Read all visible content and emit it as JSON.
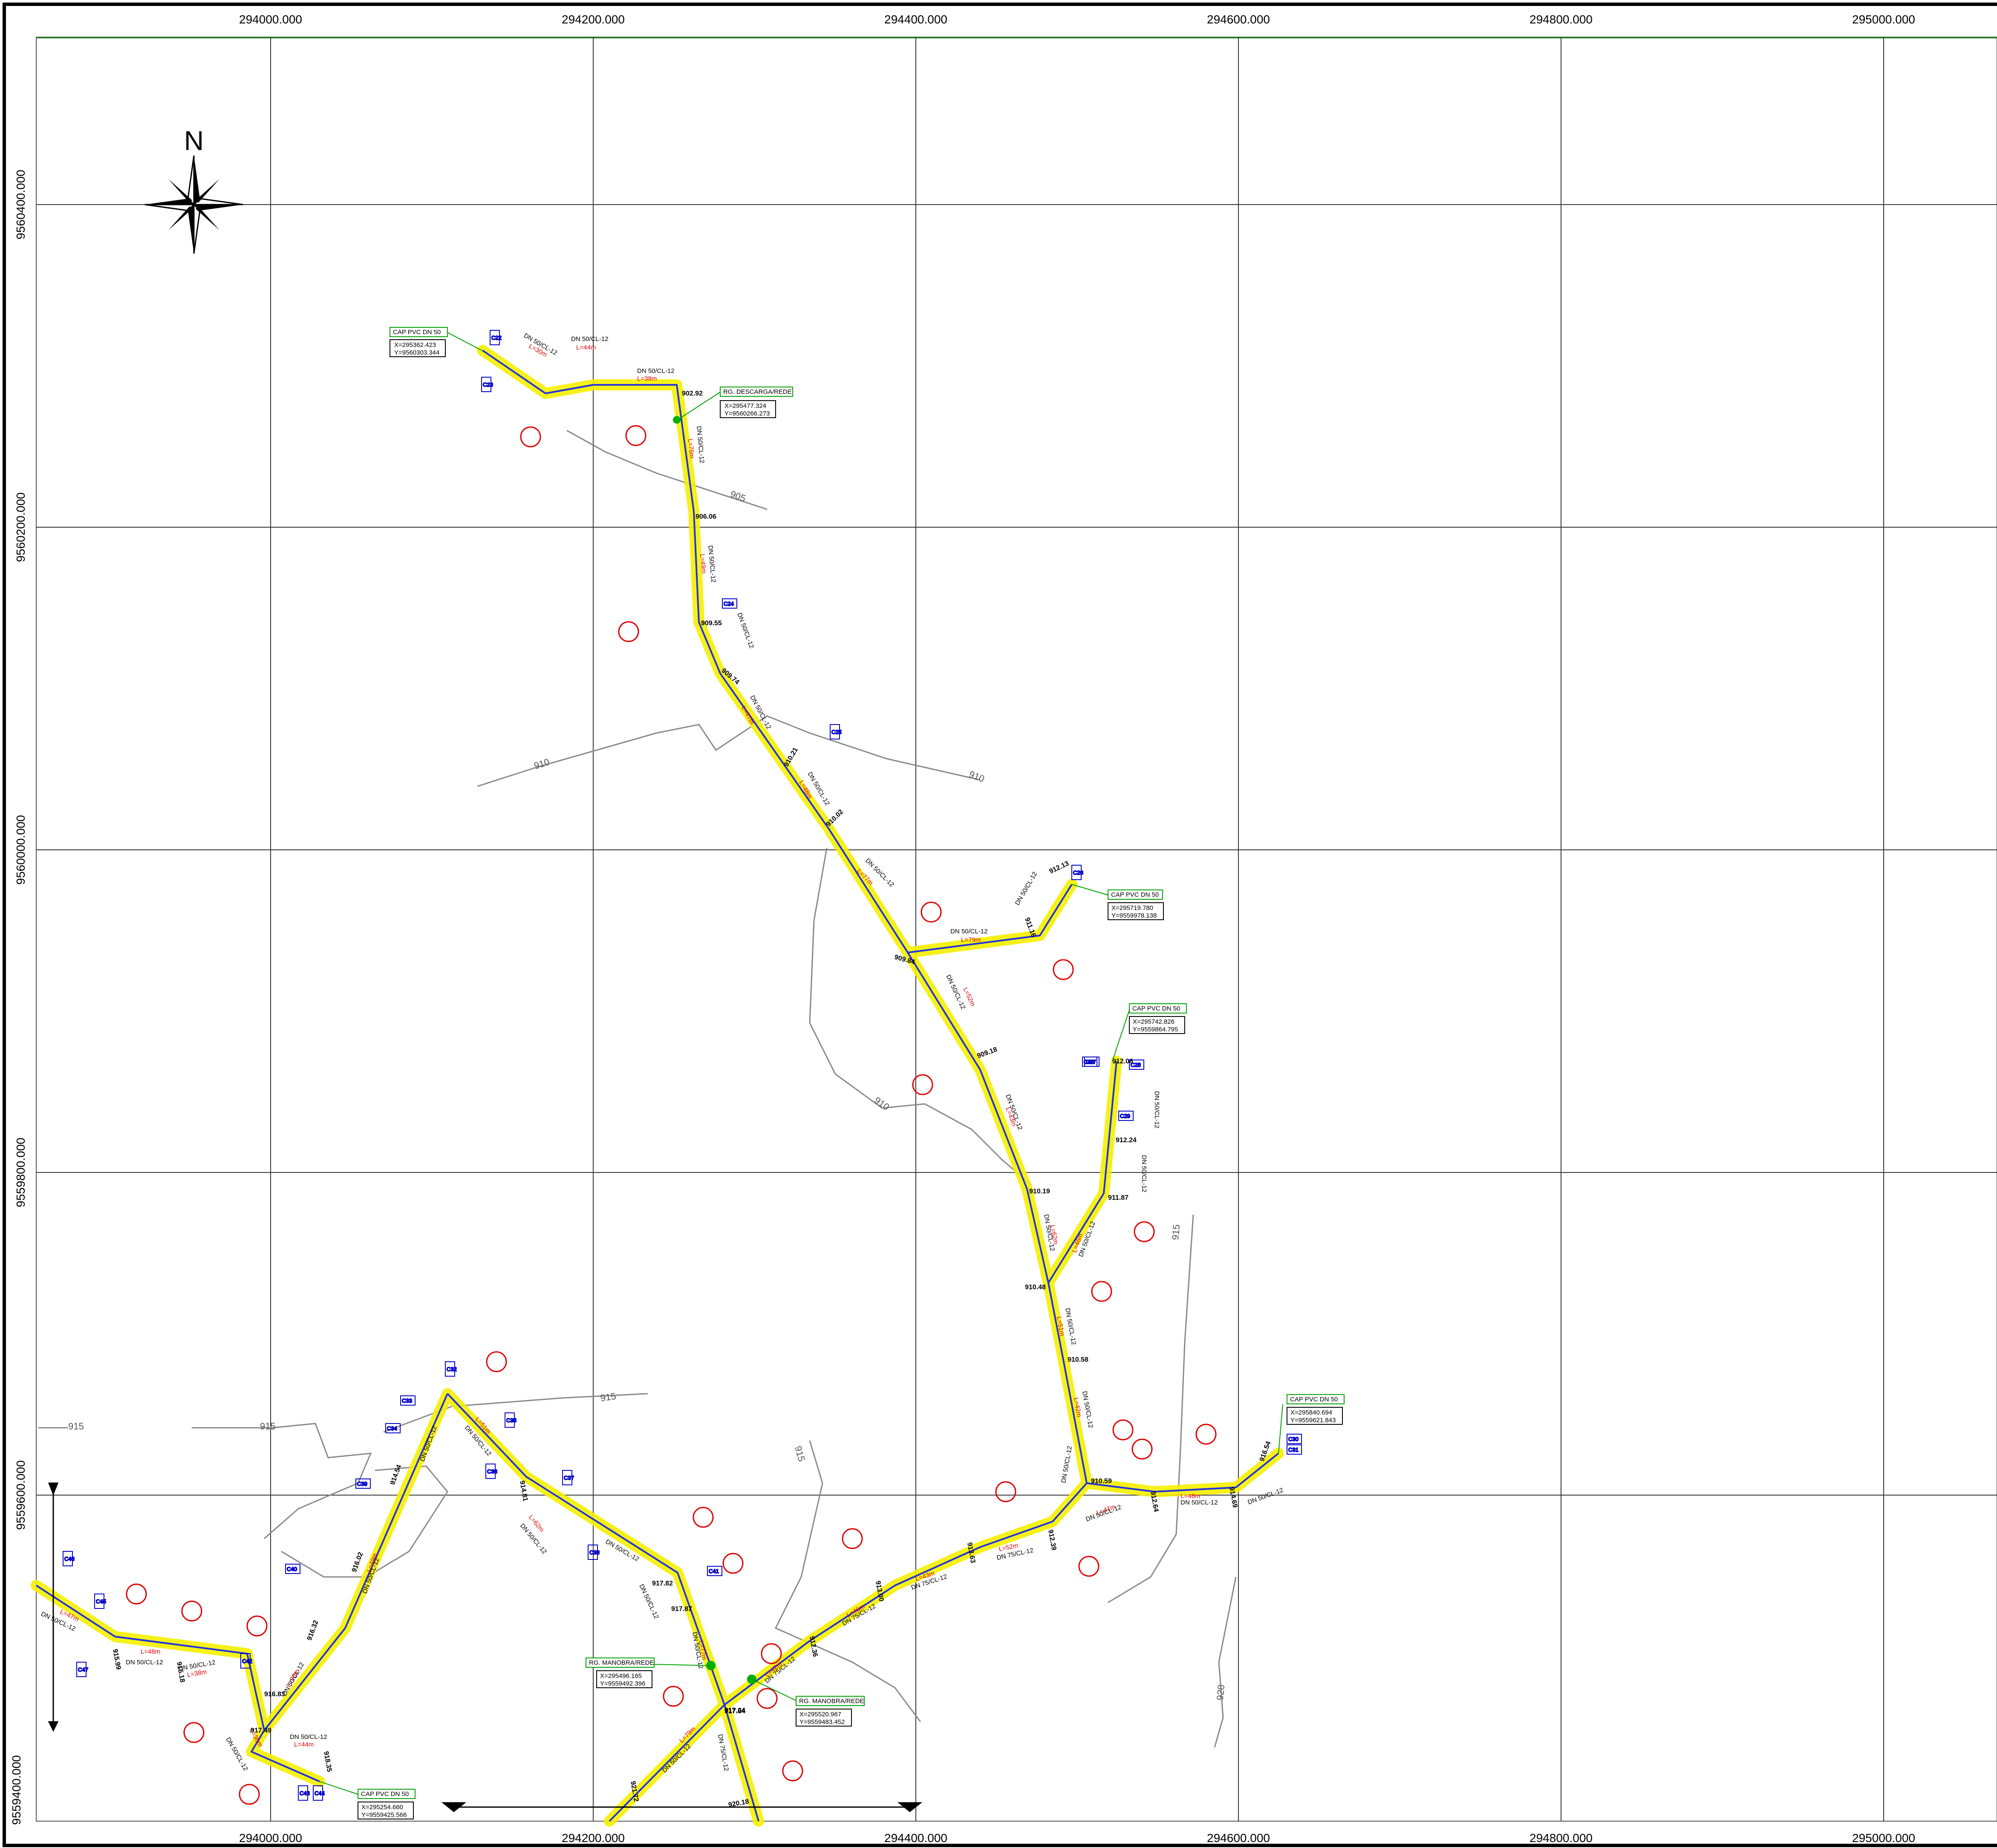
{
  "grid": {
    "x_labels": [
      "294000.000",
      "294200.000",
      "294400.000",
      "294600.000",
      "294800.000",
      "295000.000"
    ],
    "y_labels": [
      "9560400.000",
      "9560200.000",
      "9560000.000",
      "9559800.000",
      "9559600.000",
      "9559400.000"
    ]
  },
  "north_arrow": {
    "label": "N",
    "icon": "compass-rose-icon"
  },
  "contours": [
    {
      "label": "905"
    },
    {
      "label": "910"
    },
    {
      "label": "910"
    },
    {
      "label": "910"
    },
    {
      "label": "915"
    },
    {
      "label": "915"
    },
    {
      "label": "915"
    },
    {
      "label": "915"
    },
    {
      "label": "915"
    },
    {
      "label": "920"
    }
  ],
  "annotation_boxes": [
    {
      "title": "CAP PVC DN 50",
      "coords": [
        "X=295362.423",
        "Y=9560303.344"
      ]
    },
    {
      "title": "RG. DESCARGA/REDE",
      "coords": [
        "X=295477.324",
        "Y=9560266.273"
      ]
    },
    {
      "title": "CAP PVC DN 50",
      "coords": [
        "X=295719.780",
        "Y=9559978.138"
      ]
    },
    {
      "title": "CAP PVC DN 50",
      "coords": [
        "X=295742.826",
        "Y=9559864.795"
      ]
    },
    {
      "title": "CAP PVC DN 50",
      "coords": [
        "X=295840.694",
        "Y=9559621.843"
      ]
    },
    {
      "title": "RG. MANOBRA/REDE",
      "coords": [
        "X=295496.165",
        "Y=9559492.396"
      ]
    },
    {
      "title": "RG. MANOBRA/REDE",
      "coords": [
        "X=295520.967",
        "Y=9559483.452"
      ]
    },
    {
      "title": "CAP PVC DN 50",
      "coords": [
        "X=295254.660",
        "Y=9559425.566"
      ]
    }
  ],
  "elevations": [
    "902.92",
    "906.06",
    "909.55",
    "909.74",
    "910.21",
    "910.02",
    "909.84",
    "909.18",
    "911.16",
    "912.13",
    "912.06",
    "912.24",
    "911.87",
    "910.19",
    "910.48",
    "910.58",
    "910.59",
    "912.64",
    "914.69",
    "916.54",
    "912.39",
    "913.63",
    "913.00",
    "912.36",
    "917.04",
    "917.87",
    "917.82",
    "917.84",
    "914.81",
    "914.54",
    "916.02",
    "916.32",
    "916.83",
    "917.49",
    "918.35",
    "915.99",
    "915.18",
    "921.72",
    "920.18"
  ],
  "pipe_specs": [
    "DN 50/CL-12",
    "DN 75/CL-12"
  ],
  "lengths": [
    "L=30m",
    "L=44m",
    "L=38m",
    "L=76m",
    "L=49m",
    "L=47m",
    "L=48m",
    "L=77m",
    "L=79m",
    "L=52m",
    "L=43m",
    "L=62m",
    "L=46m",
    "L=51m",
    "L=42m"
  ],
  "node_tags": [
    "C22",
    "C23",
    "C24",
    "C25",
    "C26",
    "C27",
    "C28",
    "C29",
    "C30",
    "C31",
    "C32",
    "C33",
    "C34",
    "C35",
    "C36",
    "C37",
    "C38",
    "C39",
    "C40",
    "C41",
    "C42",
    "C43",
    "C44",
    "C45",
    "C46",
    "C47",
    "C48"
  ],
  "colors": {
    "pipe": "#2233dd",
    "buffer": "#f5f000",
    "valve": "#00b000",
    "marker": "#e00000",
    "grid": "#333333",
    "contour": "#888888",
    "frame_top": "#00a000"
  }
}
